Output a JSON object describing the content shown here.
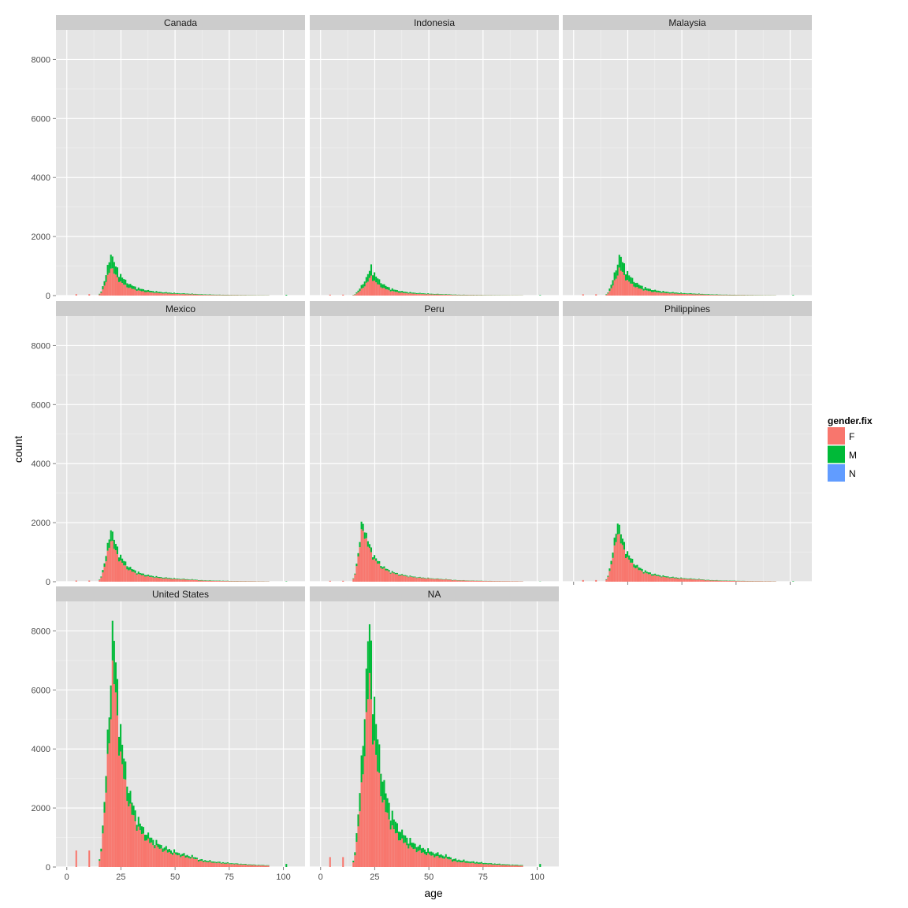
{
  "chart_data": {
    "type": "bar",
    "subtype": "stacked histogram, faceted",
    "xlabel": "age",
    "ylabel": "count",
    "xlim": [
      -5,
      110
    ],
    "ylim": [
      0,
      9000
    ],
    "x_ticks": [
      0,
      25,
      50,
      75,
      100
    ],
    "y_ticks": [
      0,
      2000,
      4000,
      6000,
      8000
    ],
    "grid": true,
    "legend": {
      "title": "gender.fix",
      "placement": "right",
      "entries": [
        {
          "label": "F",
          "color": "#F8766D"
        },
        {
          "label": "M",
          "color": "#00BA38"
        },
        {
          "label": "N",
          "color": "#619CFF"
        }
      ]
    },
    "facets": [
      {
        "name": "Canada",
        "peak_age": 20,
        "peak_F": 1000,
        "peak_M": 450,
        "tail_F": 60,
        "tail_M": 30
      },
      {
        "name": "Indonesia",
        "peak_age": 23,
        "peak_F": 650,
        "peak_M": 300,
        "tail_F": 40,
        "tail_M": 20
      },
      {
        "name": "Malaysia",
        "peak_age": 21,
        "peak_F": 950,
        "peak_M": 450,
        "tail_F": 55,
        "tail_M": 25
      },
      {
        "name": "Mexico",
        "peak_age": 20,
        "peak_F": 1500,
        "peak_M": 350,
        "tail_F": 50,
        "tail_M": 15
      },
      {
        "name": "Peru",
        "peak_age": 19,
        "peak_F": 1900,
        "peak_M": 250,
        "tail_F": 40,
        "tail_M": 10
      },
      {
        "name": "Philippines",
        "peak_age": 20,
        "peak_F": 1750,
        "peak_M": 350,
        "tail_F": 70,
        "tail_M": 20
      },
      {
        "name": "United States",
        "peak_age": 21,
        "peak_F": 7000,
        "peak_M": 1400,
        "tail_F": 700,
        "tail_M": 130
      },
      {
        "name": "NA",
        "peak_age": 22,
        "peak_F": 6500,
        "peak_M": 1900,
        "tail_F": 420,
        "tail_M": 130
      }
    ]
  }
}
